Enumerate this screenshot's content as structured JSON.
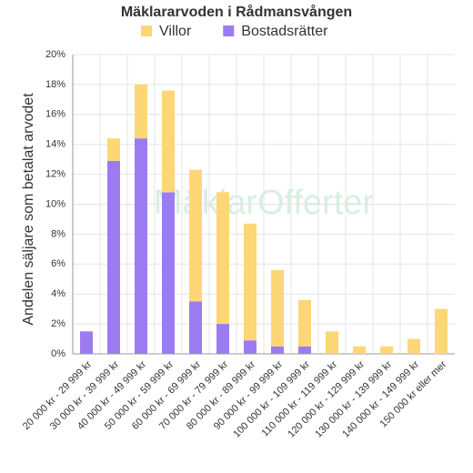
{
  "chart_data": {
    "type": "stacked-bar",
    "title": "Mäklararvoden i Rådmansvången",
    "watermark": "MäklarOfferter",
    "y_label": "Andelen säljare som betalat arvodet",
    "categories": [
      "20 000 kr - 29 999 kr",
      "30 000 kr - 39 999 kr",
      "40 000 kr - 49 999 kr",
      "50 000 kr - 59 999 kr",
      "60 000 kr - 69 999 kr",
      "70 000 kr - 79 999 kr",
      "80 000 kr - 89 999 kr",
      "90 000 kr - 99 999 kr",
      "100 000 kr - 109 999 kr",
      "110 000 kr - 119 999 kr",
      "120 000 kr - 129 999 kr",
      "130 000 kr - 139 999 kr",
      "140 000 kr - 149 999 kr",
      "150 000 kr eller mer"
    ],
    "series": [
      {
        "name": "Villor",
        "color": "#fdd775",
        "values": [
          0,
          1.5,
          3.6,
          6.8,
          8.8,
          8.8,
          7.8,
          5.1,
          3.1,
          1.5,
          0.5,
          0.5,
          1.0,
          3.0
        ]
      },
      {
        "name": "Bostadsrätter",
        "color": "#9b7cf0",
        "values": [
          1.5,
          12.9,
          14.4,
          10.8,
          3.5,
          2.0,
          0.9,
          0.5,
          0.5,
          0,
          0,
          0,
          0,
          0
        ]
      }
    ],
    "stack_order": [
      1,
      0
    ],
    "ylim": [
      0,
      20
    ],
    "yticks": [
      {
        "value": 0,
        "label": "0%"
      },
      {
        "value": 2,
        "label": "2%"
      },
      {
        "value": 4,
        "label": "4%"
      },
      {
        "value": 6,
        "label": "6%"
      },
      {
        "value": 8,
        "label": "8%"
      },
      {
        "value": 10,
        "label": "10%"
      },
      {
        "value": 12,
        "label": "12%"
      },
      {
        "value": 14,
        "label": "14%"
      },
      {
        "value": 16,
        "label": "16%"
      },
      {
        "value": 18,
        "label": "18%"
      },
      {
        "value": 20,
        "label": "20%"
      }
    ],
    "grid": true
  }
}
